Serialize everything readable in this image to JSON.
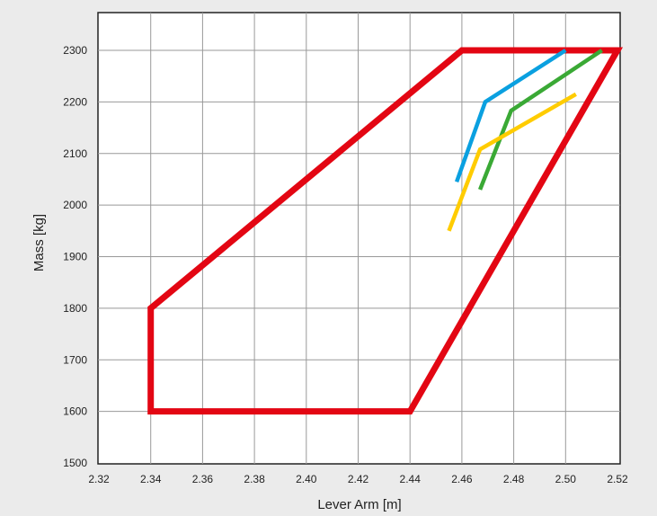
{
  "chart_data": {
    "type": "line",
    "xlabel": "Lever Arm [m]",
    "ylabel": "Mass [kg]",
    "xlim": [
      2.32,
      2.52
    ],
    "ylim": [
      1500,
      2300
    ],
    "x_ticks": [
      "2.32",
      "2.34",
      "2.36",
      "2.38",
      "2.40",
      "2.42",
      "2.44",
      "2.46",
      "2.48",
      "2.50",
      "2.52"
    ],
    "y_ticks": [
      "1500",
      "1600",
      "1700",
      "1800",
      "1900",
      "2000",
      "2100",
      "2200",
      "2300"
    ],
    "grid": true,
    "legend": "none",
    "series": [
      {
        "color": "#e30613",
        "closed": true,
        "points": [
          [
            2.34,
            1600
          ],
          [
            2.44,
            1600
          ],
          [
            2.52,
            2300
          ],
          [
            2.46,
            2300
          ],
          [
            2.34,
            1800
          ]
        ]
      },
      {
        "color": "#0aa0e0",
        "closed": false,
        "points": [
          [
            2.458,
            2045
          ],
          [
            2.469,
            2200
          ],
          [
            2.5,
            2300
          ]
        ]
      },
      {
        "color": "#3aa935",
        "closed": false,
        "points": [
          [
            2.467,
            2030
          ],
          [
            2.479,
            2183
          ],
          [
            2.514,
            2300
          ]
        ]
      },
      {
        "color": "#ffcc00",
        "closed": false,
        "points": [
          [
            2.455,
            1950
          ],
          [
            2.467,
            2108
          ],
          [
            2.504,
            2215
          ]
        ]
      }
    ]
  }
}
